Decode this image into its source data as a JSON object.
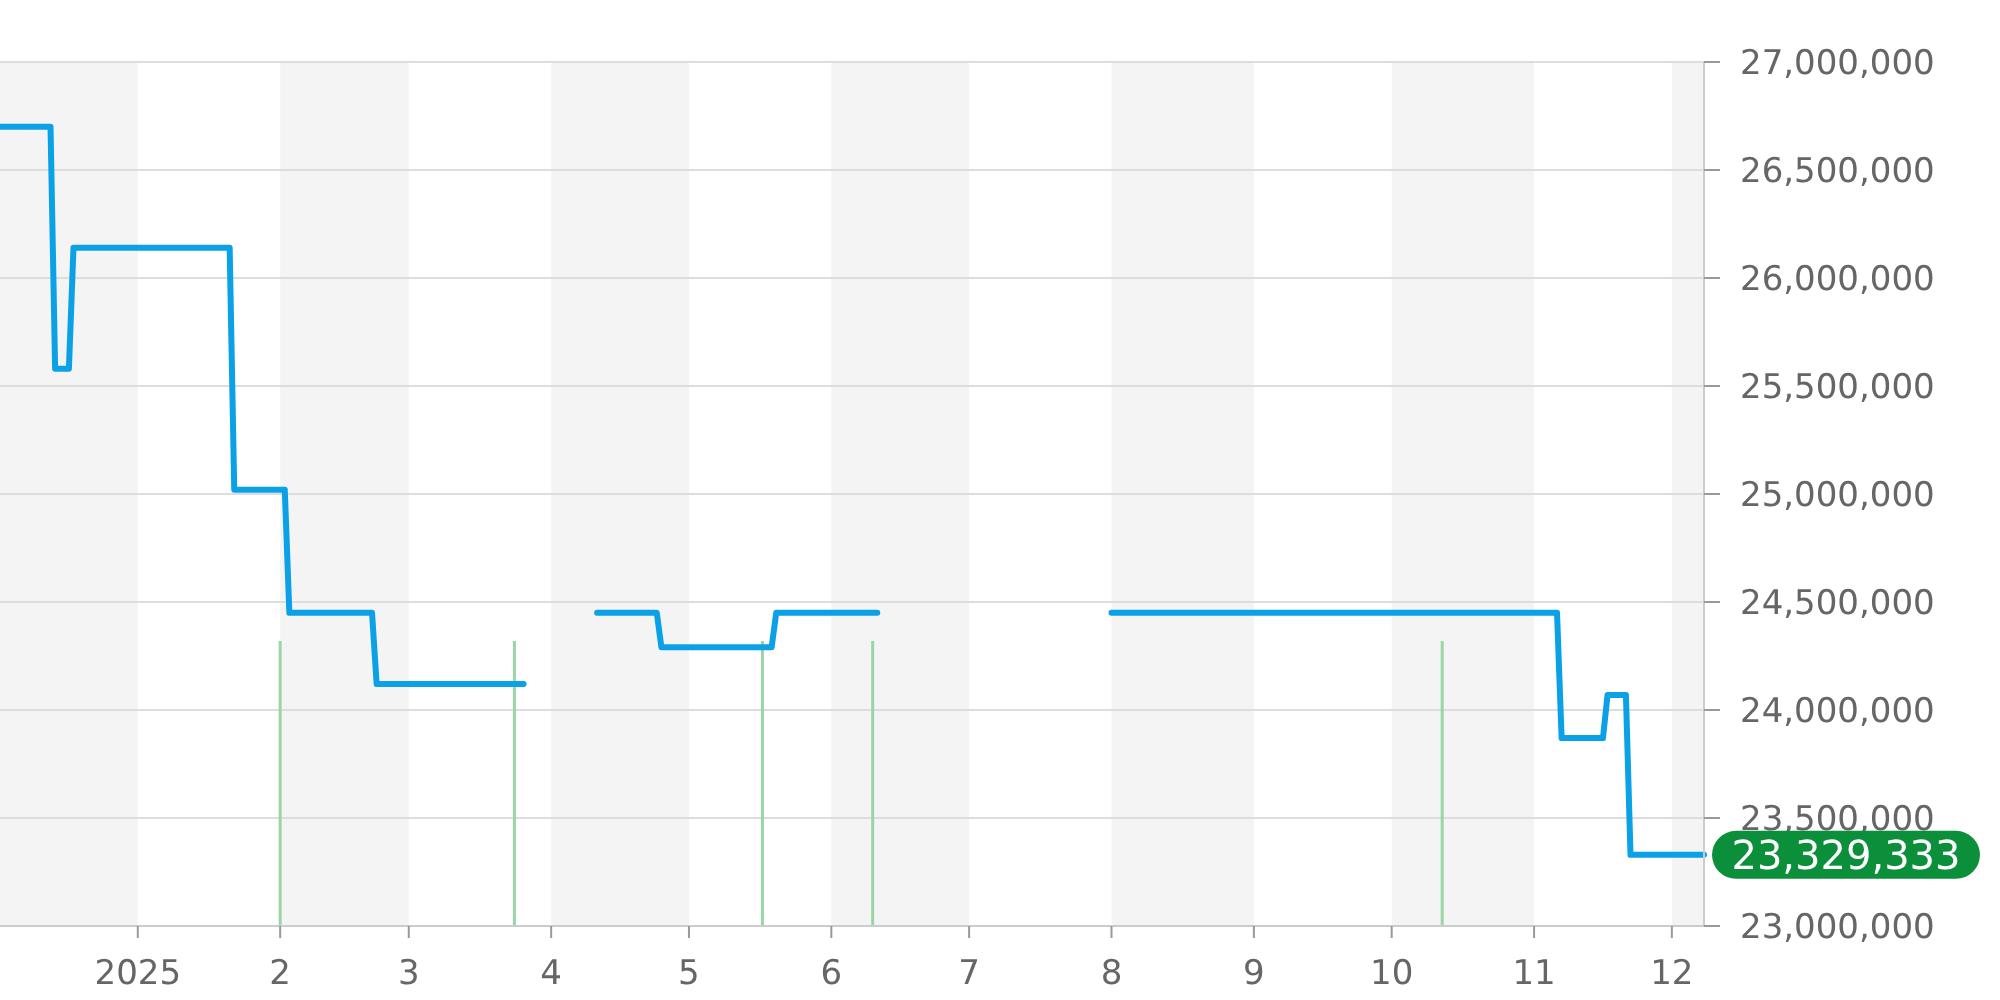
{
  "chart_data": {
    "type": "line",
    "x": [
      "2024-12-02",
      "2024-12-13",
      "2024-12-14",
      "2024-12-17",
      "2024-12-18",
      "2025-01-21",
      "2025-01-22",
      "2025-02-02",
      "2025-02-03",
      "2025-02-21",
      "2025-02-22",
      "2025-03-26",
      "2025-04-03",
      "2025-04-11",
      "2025-04-24",
      "2025-04-25",
      "2025-05-19",
      "2025-05-20",
      "2025-06-11",
      "2025-07-10",
      "2025-08-01",
      "2025-11-06",
      "2025-11-07",
      "2025-11-16",
      "2025-11-17",
      "2025-11-21",
      "2025-11-22",
      "2025-12-08"
    ],
    "series": [
      {
        "color": "#0ba1e6",
        "values": [
          26700000,
          26700000,
          25580000,
          25580000,
          26140000,
          26140000,
          25020000,
          25020000,
          24450000,
          24450000,
          24120000,
          24120000,
          null,
          24450000,
          24450000,
          24290000,
          24290000,
          24450000,
          24450000,
          null,
          24450000,
          24450000,
          23870000,
          23870000,
          24070000,
          24070000,
          23329333,
          23329333
        ]
      }
    ],
    "xlim": [
      "2024-12-02",
      "2025-12-08"
    ],
    "xticks": [
      {
        "value": "2025-01-01",
        "label": "2025"
      },
      {
        "value": "2025-02-01",
        "label": "2"
      },
      {
        "value": "2025-03-01",
        "label": "3"
      },
      {
        "value": "2025-04-01",
        "label": "4"
      },
      {
        "value": "2025-05-01",
        "label": "5"
      },
      {
        "value": "2025-06-01",
        "label": "6"
      },
      {
        "value": "2025-07-01",
        "label": "7"
      },
      {
        "value": "2025-08-01",
        "label": "8"
      },
      {
        "value": "2025-09-01",
        "label": "9"
      },
      {
        "value": "2025-10-01",
        "label": "10"
      },
      {
        "value": "2025-11-01",
        "label": "11"
      },
      {
        "value": "2025-12-01",
        "label": "12"
      }
    ],
    "ylim": [
      23000000,
      27000000
    ],
    "yticks": [
      {
        "value": 23000000,
        "label": "23,000,000"
      },
      {
        "value": 23500000,
        "label": "23,500,000"
      },
      {
        "value": 24000000,
        "label": "24,000,000"
      },
      {
        "value": 24500000,
        "label": "24,500,000"
      },
      {
        "value": 25000000,
        "label": "25,000,000"
      },
      {
        "value": 25500000,
        "label": "25,500,000"
      },
      {
        "value": 26000000,
        "label": "26,000,000"
      },
      {
        "value": 26500000,
        "label": "26,500,000"
      },
      {
        "value": 27000000,
        "label": "27,000,000"
      }
    ],
    "grid": "y",
    "marker": "none",
    "line_style": "solid",
    "bands": [
      {
        "axis": "x",
        "from": "2024-12-02",
        "to": "2025-01-01",
        "color": "#f4f4f4"
      },
      {
        "axis": "x",
        "from": "2025-02-01",
        "to": "2025-03-01",
        "color": "#f4f4f4"
      },
      {
        "axis": "x",
        "from": "2025-04-01",
        "to": "2025-05-01",
        "color": "#f4f4f4"
      },
      {
        "axis": "x",
        "from": "2025-06-01",
        "to": "2025-07-01",
        "color": "#f4f4f4"
      },
      {
        "axis": "x",
        "from": "2025-08-01",
        "to": "2025-09-01",
        "color": "#f4f4f4"
      },
      {
        "axis": "x",
        "from": "2025-10-01",
        "to": "2025-11-01",
        "color": "#f4f4f4"
      },
      {
        "axis": "x",
        "from": "2025-12-01",
        "to": "2025-12-08",
        "color": "#f4f4f4"
      }
    ],
    "ref_lines": [
      {
        "axis": "x",
        "value": "2025-02-01",
        "color": "#9ad6a4"
      },
      {
        "axis": "x",
        "value": "2025-03-24",
        "color": "#9ad6a4"
      },
      {
        "axis": "x",
        "value": "2025-05-17",
        "color": "#9ad6a4"
      },
      {
        "axis": "x",
        "value": "2025-06-10",
        "color": "#9ad6a4"
      },
      {
        "axis": "x",
        "value": "2025-10-12",
        "color": "#9ad6a4"
      }
    ],
    "annotations": [
      {
        "text": "23,329,333",
        "x": "2025-12-08",
        "y": 23329333
      }
    ]
  }
}
